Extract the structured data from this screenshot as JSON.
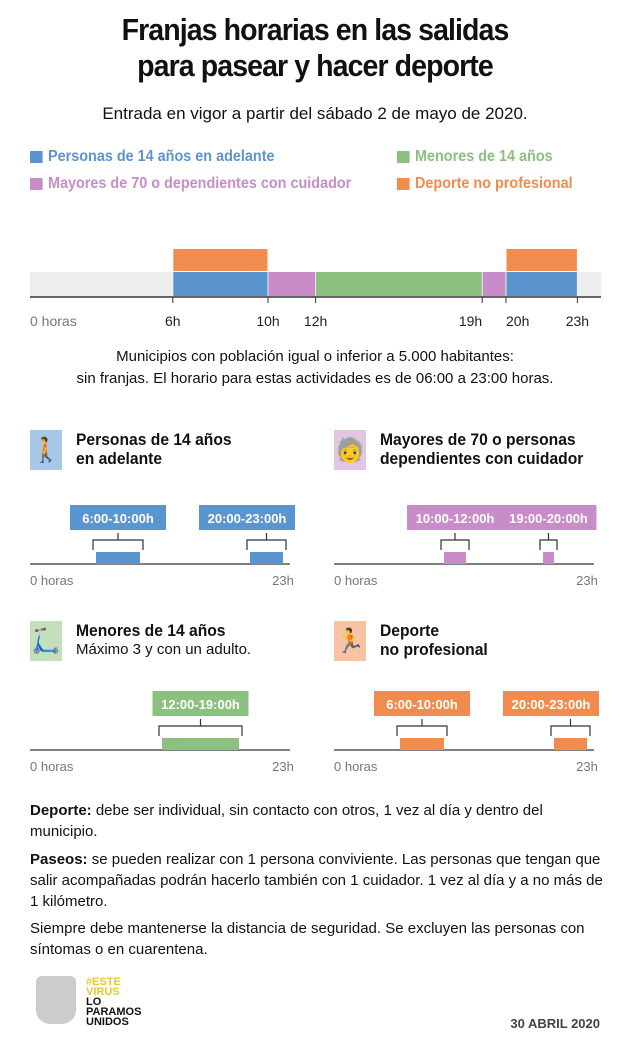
{
  "title_line1": "Franjas horarias en las salidas",
  "title_line2": "para pasear y hacer deporte",
  "subtitle": "Entrada en vigor a partir del sábado 2 de mayo de 2020.",
  "legend": [
    {
      "label": "Personas de 14 años en adelante",
      "color": "#5b95cf"
    },
    {
      "label": "Menores de 14 años",
      "color": "#8cc07f"
    },
    {
      "label": "Mayores de 70 o dependientes con cuidador",
      "color": "#c88dc8"
    },
    {
      "label": "Deporte no profesional",
      "color": "#f28c4e"
    }
  ],
  "note_line1": "Municipios con población igual o inferior a 5.000 habitantes:",
  "note_line2": "sin franjas. El horario para estas actividades es de 06:00 a 23:00 horas.",
  "panels": [
    {
      "title1": "Personas de 14 años",
      "title2": "en adelante",
      "subtitle": "",
      "icon": "walking-person-icon"
    },
    {
      "title1": "Mayores de 70 o personas",
      "title2": "dependientes con cuidador",
      "subtitle": "",
      "icon": "elderly-cane-icon"
    },
    {
      "title1": "Menores de 14 años",
      "title2": "",
      "subtitle": "Máximo 3 y con un adulto.",
      "icon": "child-scooter-icon"
    },
    {
      "title1": "Deporte",
      "title2": "no profesional",
      "subtitle": "",
      "icon": "running-person-icon"
    }
  ],
  "chart_data": [
    {
      "type": "timeline",
      "xlim": [
        0,
        24
      ],
      "start_label": "0 horas",
      "tick_labels": [
        "6h",
        "10h",
        "12h",
        "19h",
        "20h",
        "23h"
      ],
      "series": [
        {
          "name": "Personas de 14 años en adelante",
          "color": "#5b95cf",
          "ranges": [
            [
              6,
              10
            ],
            [
              20,
              23
            ]
          ]
        },
        {
          "name": "Mayores de 70 o dependientes con cuidador",
          "color": "#c88dc8",
          "ranges": [
            [
              10,
              12
            ],
            [
              19,
              20
            ]
          ]
        },
        {
          "name": "Menores de 14 años",
          "color": "#8cc07f",
          "ranges": [
            [
              12,
              19
            ]
          ]
        },
        {
          "name": "Deporte no profesional",
          "color": "#f28c4e",
          "ranges": [
            [
              6,
              10
            ],
            [
              20,
              23
            ]
          ]
        }
      ]
    },
    {
      "type": "timeline",
      "start_label": "0 horas",
      "end_label": "23h",
      "color": "#5b95cf",
      "ranges": [
        [
          6,
          10
        ],
        [
          20,
          23
        ]
      ],
      "labels": [
        "6:00-10:00h",
        "20:00-23:00h"
      ]
    },
    {
      "type": "timeline",
      "start_label": "0 horas",
      "end_label": "23h",
      "color": "#c88dc8",
      "ranges": [
        [
          10,
          12
        ],
        [
          19,
          20
        ]
      ],
      "labels": [
        "10:00-12:00h",
        "19:00-20:00h"
      ]
    },
    {
      "type": "timeline",
      "start_label": "0 horas",
      "end_label": "23h",
      "color": "#8cc07f",
      "ranges": [
        [
          12,
          19
        ]
      ],
      "labels": [
        "12:00-19:00h"
      ]
    },
    {
      "type": "timeline",
      "start_label": "0 horas",
      "end_label": "23h",
      "color": "#f28c4e",
      "ranges": [
        [
          6,
          10
        ],
        [
          20,
          23
        ]
      ],
      "labels": [
        "6:00-10:00h",
        "20:00-23:00h"
      ]
    }
  ],
  "paragraphs": [
    {
      "bold": "Deporte:",
      "text": " debe ser individual, sin contacto con otros, 1 vez al día y dentro del municipio."
    },
    {
      "bold": "Paseos:",
      "text": " se pueden realizar con 1 persona conviviente. Las personas que tengan que salir acompañadas podrán hacerlo también con 1 cuidador. 1 vez al día y a no más de 1 kilómetro."
    },
    {
      "bold": "",
      "text": "Siempre debe mantenerse la distancia de seguridad. Se excluyen las personas con síntomas o en cuarentena."
    }
  ],
  "footer": {
    "logo_text": [
      "#ESTE",
      "VIRUS",
      "LO",
      "PARAMOS",
      "UNIDOS"
    ],
    "date": "30 ABRIL 2020"
  }
}
